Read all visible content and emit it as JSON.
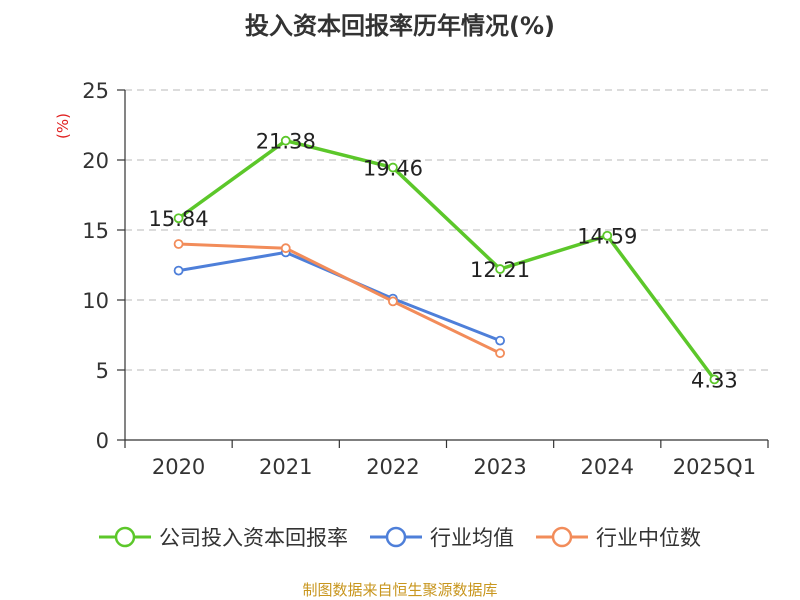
{
  "chart_data": {
    "type": "line",
    "title": "投入资本回报率历年情况(%)",
    "ylabel": "(%)",
    "xlabel": "",
    "categories": [
      "2020",
      "2021",
      "2022",
      "2023",
      "2024",
      "2025Q1"
    ],
    "ylim": [
      0,
      25
    ],
    "yticks": [
      0,
      5,
      10,
      15,
      20,
      25
    ],
    "grid": true,
    "legend_position": "bottom",
    "series": [
      {
        "name": "公司投入资本回报率",
        "color": "#5cc72a",
        "values": [
          15.84,
          21.38,
          19.46,
          12.21,
          14.59,
          4.33
        ],
        "labels": [
          "15.84",
          "21.38",
          "19.46",
          "12.21",
          "14.59",
          "4.33"
        ]
      },
      {
        "name": "行业均值",
        "color": "#4e7fd9",
        "values": [
          12.1,
          13.4,
          10.1,
          7.1,
          null,
          null
        ]
      },
      {
        "name": "行业中位数",
        "color": "#f28c5a",
        "values": [
          14.0,
          13.7,
          9.9,
          6.2,
          null,
          null
        ]
      }
    ]
  },
  "source_note": "制图数据来自恒生聚源数据库"
}
